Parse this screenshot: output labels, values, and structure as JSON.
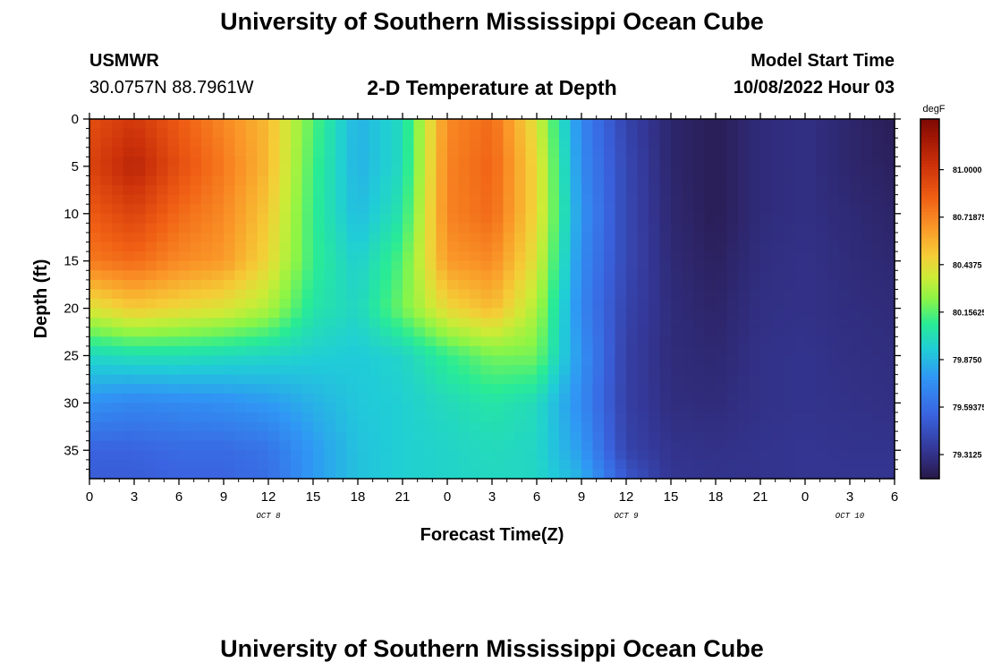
{
  "page": {
    "title": "University of Southern Mississippi Ocean Cube",
    "station_id": "USMWR",
    "coords": "30.0757N  88.7961W",
    "plot_title": "2-D Temperature at Depth",
    "model_start_label": "Model Start Time",
    "model_start_value": "10/08/2022 Hour 03",
    "footer_title": "University of Southern Mississippi Ocean Cube"
  },
  "chart_data": {
    "type": "heatmap",
    "title": "2-D Temperature at Depth",
    "xlabel": "Forecast Time(Z)",
    "ylabel": "Depth (ft)",
    "units": "degF",
    "x_hours_range": [
      0,
      54
    ],
    "x_ticks": [
      {
        "h": 0,
        "label": "0"
      },
      {
        "h": 3,
        "label": "3"
      },
      {
        "h": 6,
        "label": "6"
      },
      {
        "h": 9,
        "label": "9"
      },
      {
        "h": 12,
        "label": "12"
      },
      {
        "h": 15,
        "label": "15"
      },
      {
        "h": 18,
        "label": "18"
      },
      {
        "h": 21,
        "label": "21"
      },
      {
        "h": 24,
        "label": "0"
      },
      {
        "h": 27,
        "label": "3"
      },
      {
        "h": 30,
        "label": "6"
      },
      {
        "h": 33,
        "label": "9"
      },
      {
        "h": 36,
        "label": "12"
      },
      {
        "h": 39,
        "label": "15"
      },
      {
        "h": 42,
        "label": "18"
      },
      {
        "h": 45,
        "label": "21"
      },
      {
        "h": 48,
        "label": "0"
      },
      {
        "h": 51,
        "label": "3"
      },
      {
        "h": 54,
        "label": "6"
      }
    ],
    "date_labels": [
      {
        "h": 12,
        "label": "OCT 8"
      },
      {
        "h": 36,
        "label": "OCT 9"
      },
      {
        "h": 51,
        "label": "OCT 10"
      }
    ],
    "y_range": [
      0,
      38
    ],
    "y_ticks": [
      0,
      5,
      10,
      15,
      20,
      25,
      30,
      35
    ],
    "colorbar": {
      "label": "degF",
      "min": 79.17,
      "max": 81.3,
      "ticks": [
        {
          "v": 81.0,
          "label": "81.0000"
        },
        {
          "v": 80.71875,
          "label": "80.71875"
        },
        {
          "v": 80.4375,
          "label": "80.4375"
        },
        {
          "v": 80.15625,
          "label": "80.15625"
        },
        {
          "v": 79.875,
          "label": "79.8750"
        },
        {
          "v": 79.59375,
          "label": "79.59375"
        },
        {
          "v": 79.3125,
          "label": "79.3125"
        }
      ]
    },
    "grid_hours": [
      0,
      3,
      6,
      9,
      12,
      15,
      18,
      21,
      24,
      27,
      30,
      33,
      36,
      39,
      42,
      45,
      48,
      51,
      54
    ],
    "grid_depths": [
      0,
      5,
      10,
      15,
      20,
      25,
      30,
      35,
      38
    ],
    "temperature": [
      [
        80.9,
        81.0,
        80.85,
        80.7,
        80.55,
        80.15,
        79.85,
        80.0,
        80.7,
        80.8,
        80.4,
        79.7,
        79.4,
        79.25,
        79.2,
        79.28,
        79.3,
        79.25,
        79.2
      ],
      [
        80.95,
        81.1,
        80.9,
        80.75,
        80.55,
        80.12,
        79.85,
        80.0,
        80.72,
        80.82,
        80.45,
        79.72,
        79.42,
        79.25,
        79.2,
        79.28,
        79.3,
        79.25,
        79.22
      ],
      [
        80.85,
        80.95,
        80.8,
        80.7,
        80.5,
        80.1,
        79.88,
        80.05,
        80.72,
        80.8,
        80.45,
        79.75,
        79.42,
        79.26,
        79.2,
        79.28,
        79.3,
        79.27,
        79.24
      ],
      [
        80.75,
        80.8,
        80.7,
        80.65,
        80.45,
        80.1,
        79.95,
        80.15,
        80.65,
        80.7,
        80.4,
        79.72,
        79.42,
        79.27,
        79.22,
        79.29,
        79.31,
        79.28,
        79.26
      ],
      [
        80.4,
        80.5,
        80.45,
        80.4,
        80.3,
        80.05,
        79.98,
        80.2,
        80.45,
        80.55,
        80.3,
        79.7,
        79.4,
        79.28,
        79.24,
        79.3,
        79.31,
        79.29,
        79.28
      ],
      [
        79.98,
        80.02,
        80.02,
        80.0,
        79.98,
        79.95,
        79.93,
        79.97,
        80.1,
        80.2,
        80.2,
        79.75,
        79.38,
        79.28,
        79.26,
        79.31,
        79.32,
        79.3,
        79.29
      ],
      [
        79.75,
        79.7,
        79.72,
        79.74,
        79.78,
        79.85,
        79.92,
        79.95,
        80.0,
        80.05,
        80.0,
        79.72,
        79.38,
        79.29,
        79.28,
        79.31,
        79.32,
        79.31,
        79.3
      ],
      [
        79.55,
        79.55,
        79.58,
        79.58,
        79.62,
        79.78,
        79.9,
        79.95,
        79.97,
        80.0,
        79.98,
        79.78,
        79.4,
        79.32,
        79.31,
        79.32,
        79.33,
        79.32,
        79.32
      ],
      [
        79.52,
        79.52,
        79.55,
        79.55,
        79.6,
        79.78,
        79.9,
        79.95,
        79.97,
        79.99,
        79.98,
        79.85,
        79.5,
        79.33,
        79.32,
        79.32,
        79.33,
        79.33,
        79.33
      ]
    ]
  }
}
